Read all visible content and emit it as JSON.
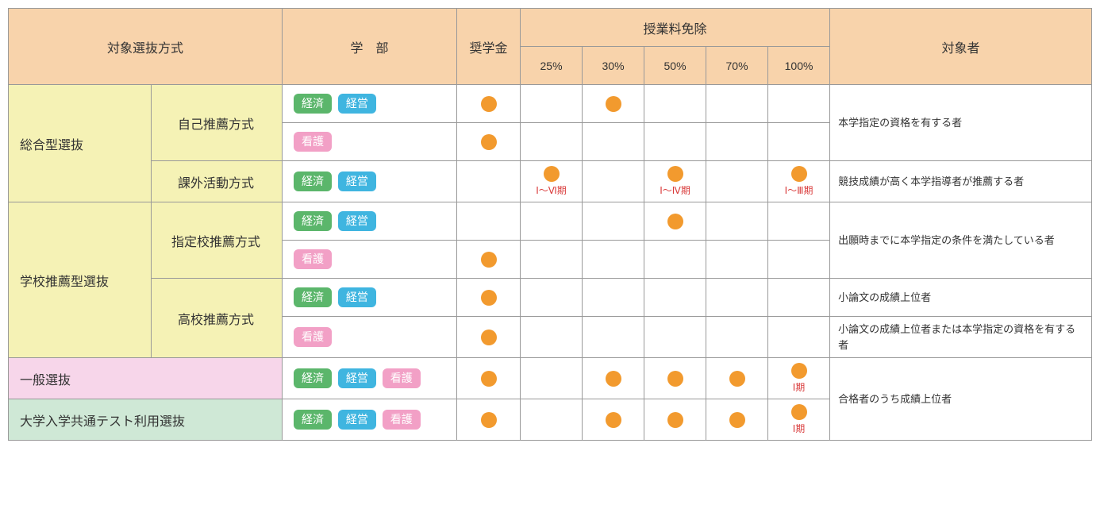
{
  "headers": {
    "selection": "対象選抜方式",
    "dept": "学　部",
    "scholarship": "奨学金",
    "exemption": "授業料免除",
    "pct25": "25%",
    "pct30": "30%",
    "pct50": "50%",
    "pct70": "70%",
    "pct100": "100%",
    "target": "対象者"
  },
  "badges": {
    "econ": "経済",
    "mgmt": "経営",
    "nurse": "看護"
  },
  "rows": {
    "sougou": "総合型選抜",
    "self_rec": "自己推薦方式",
    "extra": "課外活動方式",
    "school_rec": "学校推薦型選抜",
    "desig": "指定校推薦方式",
    "high": "高校推薦方式",
    "general": "一般選抜",
    "common_test": "大学入学共通テスト利用選抜"
  },
  "periods": {
    "p16": "Ⅰ～Ⅵ期",
    "p14": "Ⅰ～Ⅳ期",
    "p13": "Ⅰ～Ⅲ期",
    "p1": "Ⅰ期"
  },
  "targets": {
    "t1": "本学指定の資格を有する者",
    "t2": "競技成績が高く本学指導者が推薦する者",
    "t3": "出願時までに本学指定の条件を満たしている者",
    "t4": "小論文の成績上位者",
    "t5": "小論文の成績上位者または本学指定の資格を有する者",
    "t6": "合格者のうち成績上位者"
  },
  "colors": {
    "dot": "#f29a2e",
    "badge_green": "#5bb66b",
    "badge_blue": "#3fb5e0",
    "badge_pink": "#f2a0c6",
    "hdr_bg": "#f8d3ab",
    "yellow_bg": "#f5f2b5",
    "pink_bg": "#f7d6ea",
    "green_bg": "#cfe8d6",
    "period_color": "#d93a3a"
  }
}
